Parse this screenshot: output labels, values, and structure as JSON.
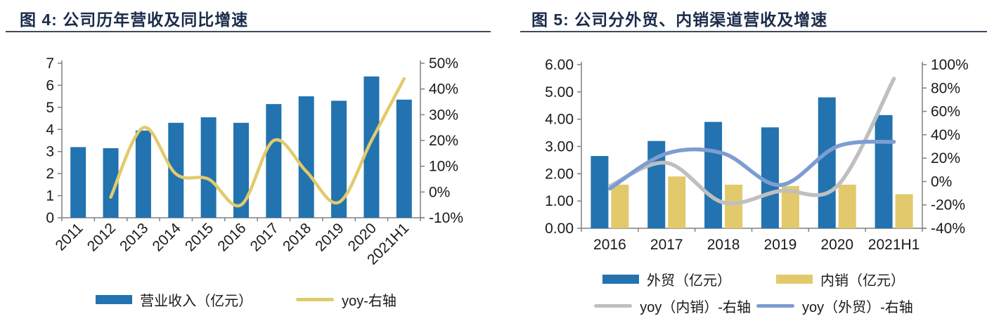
{
  "figures": [
    {
      "title": "图 4: 公司历年营收及同比增速"
    },
    {
      "title": "图 5: 公司分外贸、内销渠道营收及增速"
    }
  ],
  "colors": {
    "bar_blue": "#2273b0",
    "line_yellow": "#e2ca6c",
    "line_gray": "#bfbfbf",
    "line_lightblue": "#7d9dd1",
    "title_navy": "#1b2b4a",
    "axis_gray": "#808080",
    "label_black": "#1a1a1a"
  },
  "chart_data": [
    {
      "type": "bar",
      "title": "图 4: 公司历年营收及同比增速",
      "categories": [
        "2011",
        "2012",
        "2013",
        "2014",
        "2015",
        "2016",
        "2017",
        "2018",
        "2019",
        "2020",
        "2021H1"
      ],
      "series": [
        {
          "name": "营业收入（亿元）",
          "type": "bar",
          "axis": "left",
          "color": "#2273b0",
          "values": [
            3.2,
            3.15,
            3.95,
            4.3,
            4.55,
            4.3,
            5.15,
            5.5,
            5.3,
            6.4,
            5.35
          ]
        },
        {
          "name": "yoy-右轴",
          "type": "line",
          "axis": "right",
          "color": "#e2ca6c",
          "values": [
            null,
            -2,
            25,
            7,
            5,
            -5,
            20,
            8,
            -4,
            20,
            44
          ]
        }
      ],
      "left_axis": {
        "min": 0,
        "max": 7,
        "ticks": [
          "0",
          "1",
          "2",
          "3",
          "4",
          "5",
          "6",
          "7"
        ]
      },
      "right_axis": {
        "min": -10,
        "max": 50,
        "ticks": [
          "-10%",
          "0%",
          "10%",
          "20%",
          "30%",
          "40%",
          "50%"
        ]
      },
      "x_label_rotation": -45,
      "grid": false,
      "legend_position": "bottom"
    },
    {
      "type": "bar",
      "title": "图 5: 公司分外贸、内销渠道营收及增速",
      "categories": [
        "2016",
        "2017",
        "2018",
        "2019",
        "2020",
        "2021H1"
      ],
      "series": [
        {
          "name": "外贸（亿元）",
          "type": "bar",
          "axis": "left",
          "color": "#2273b0",
          "values": [
            2.65,
            3.2,
            3.9,
            3.7,
            4.8,
            4.15
          ]
        },
        {
          "name": "内销（亿元）",
          "type": "bar",
          "axis": "left",
          "color": "#e2ca6c",
          "values": [
            1.6,
            1.9,
            1.6,
            1.55,
            1.6,
            1.25
          ]
        },
        {
          "name": "yoy（内销）-右轴",
          "type": "line",
          "axis": "right",
          "color": "#bfbfbf",
          "values": [
            -4,
            16,
            -18,
            -8,
            -4,
            88
          ]
        },
        {
          "name": "yoy（外贸）-右轴",
          "type": "line",
          "axis": "right",
          "color": "#7d9dd1",
          "values": [
            -6,
            24,
            24,
            -3,
            30,
            34
          ]
        }
      ],
      "left_axis": {
        "min": 0,
        "max": 6,
        "ticks": [
          "0.00",
          "1.00",
          "2.00",
          "3.00",
          "4.00",
          "5.00",
          "6.00"
        ]
      },
      "right_axis": {
        "min": -40,
        "max": 100,
        "ticks": [
          "-40%",
          "-20%",
          "0%",
          "20%",
          "40%",
          "60%",
          "80%",
          "100%"
        ]
      },
      "x_label_rotation": 0,
      "grid": false,
      "legend_position": "bottom"
    }
  ]
}
